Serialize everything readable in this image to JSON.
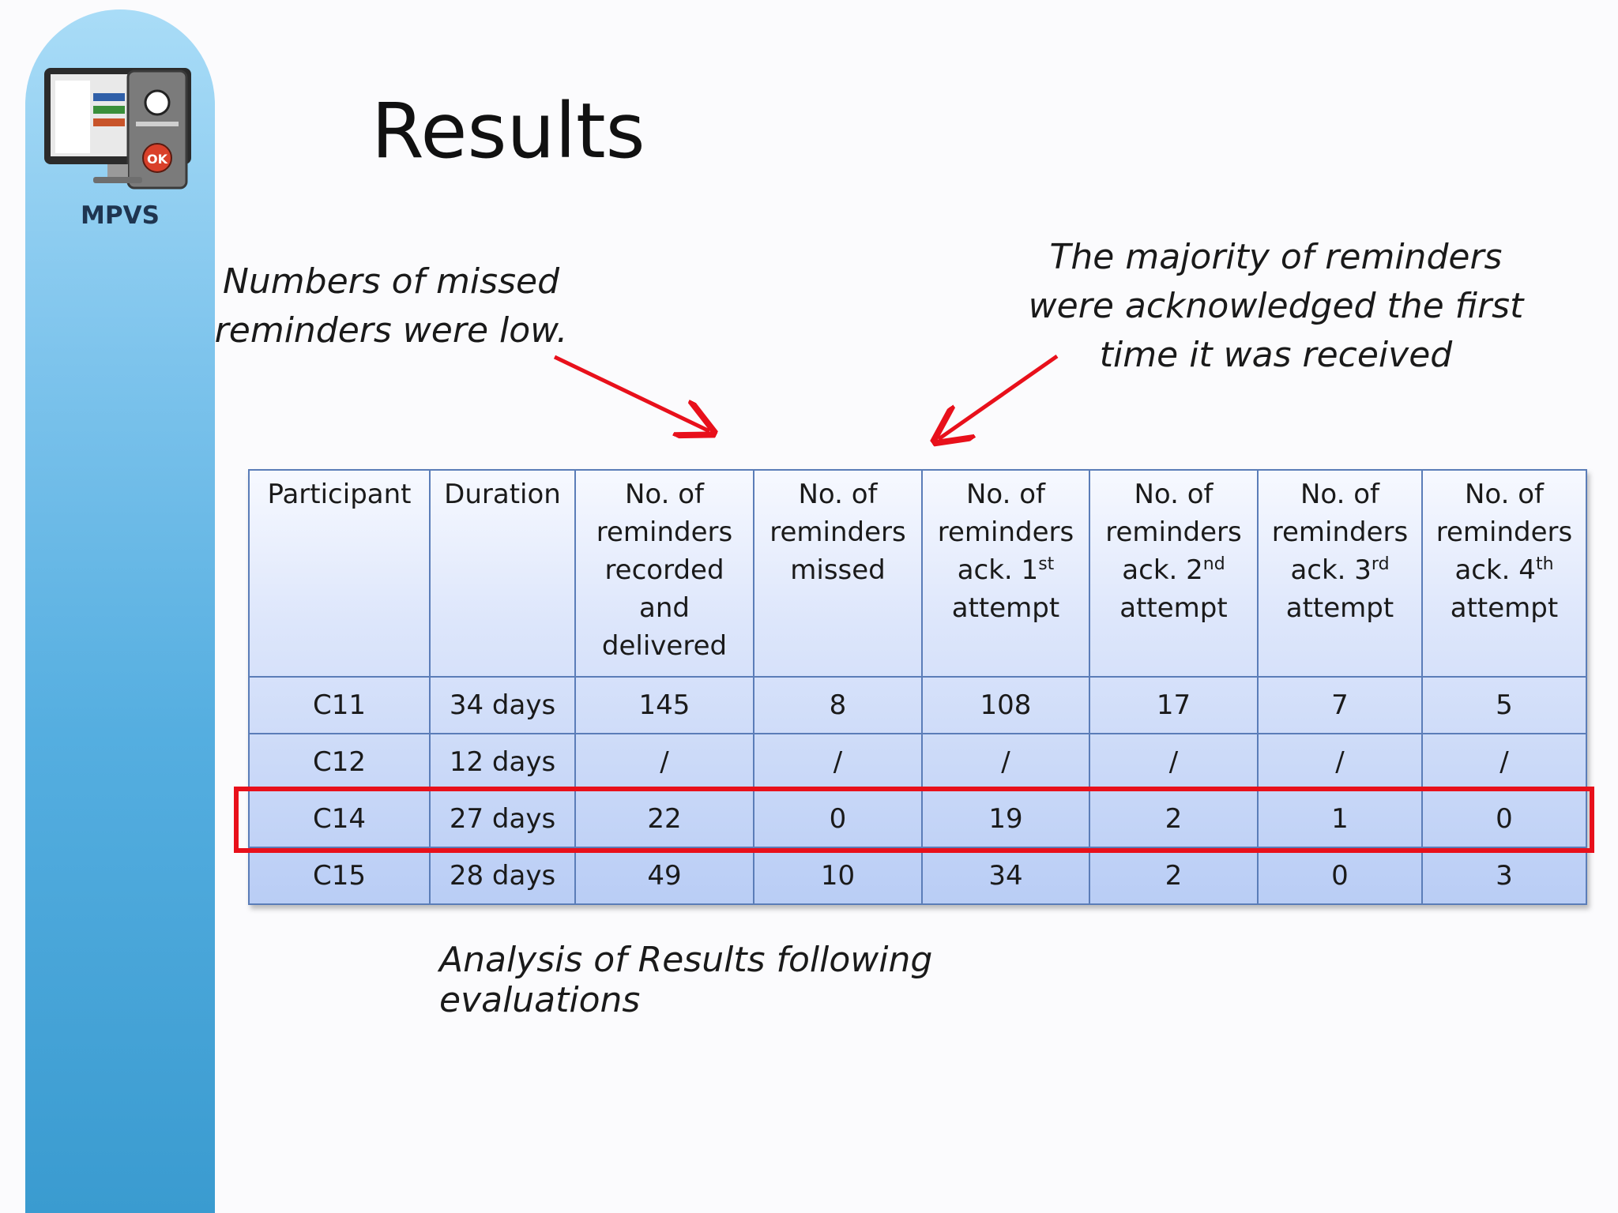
{
  "sidebar": {
    "logo_caption": "MPVS",
    "logo_button_label": "OK"
  },
  "slide": {
    "title": "Results",
    "note_left": "Numbers of missed reminders were low.",
    "note_right": "The majority of reminders were acknowledged the first time it was received",
    "caption": "Analysis of Results following evaluations"
  },
  "colors": {
    "highlight": "#e8101b",
    "arrow": "#e8101b",
    "table_border": "#5b7db8"
  },
  "table": {
    "headers": [
      {
        "text": "Participant"
      },
      {
        "text": "Duration"
      },
      {
        "text": "No. of reminders recorded and delivered"
      },
      {
        "text": "No. of reminders missed"
      },
      {
        "text": "No. of reminders ack. 1",
        "sup": "st",
        "after": "attempt"
      },
      {
        "text": "No. of reminders ack. 2",
        "sup": "nd",
        "after": "attempt"
      },
      {
        "text": "No. of reminders ack. 3",
        "sup": "rd",
        "after": "attempt"
      },
      {
        "text": "No. of reminders ack. 4",
        "sup": "th",
        "after": "attempt"
      }
    ],
    "rows": [
      [
        "C11",
        "34 days",
        "145",
        "8",
        "108",
        "17",
        "7",
        "5"
      ],
      [
        "C12",
        "12 days",
        "/",
        "/",
        "/",
        "/",
        "/",
        "/"
      ],
      [
        "C14",
        "27 days",
        "22",
        "0",
        "19",
        "2",
        "1",
        "0"
      ],
      [
        "C15",
        "28 days",
        "49",
        "10",
        "34",
        "2",
        "0",
        "3"
      ]
    ],
    "highlighted_participant": "C14"
  }
}
